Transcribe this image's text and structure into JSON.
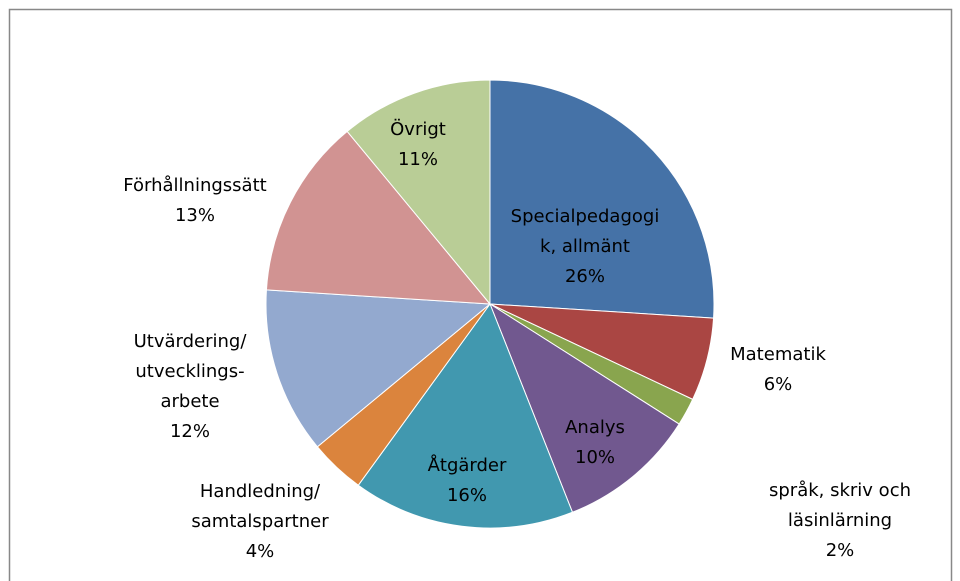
{
  "chart_data": {
    "type": "pie",
    "categories": [
      "Specialpedagogi\nk, allmänt",
      "Matematik",
      "språk, skriv och\nläsinlärning",
      "Analys",
      "Åtgärder",
      "Handledning/\nsamtalspartner",
      "Utvärdering/\nutvecklings-\narbete",
      "Förhållningssätt",
      "Övrigt"
    ],
    "values": [
      26,
      6,
      2,
      10,
      16,
      4,
      12,
      13,
      11
    ],
    "value_labels": [
      "26%",
      "6%",
      "2%",
      "10%",
      "16%",
      "4%",
      "12%",
      "13%",
      "11%"
    ],
    "colors": [
      "#4572a7",
      "#aa4643",
      "#89a54e",
      "#71588f",
      "#4198af",
      "#db843d",
      "#93a9cf",
      "#d19392",
      "#b9cd96"
    ]
  }
}
